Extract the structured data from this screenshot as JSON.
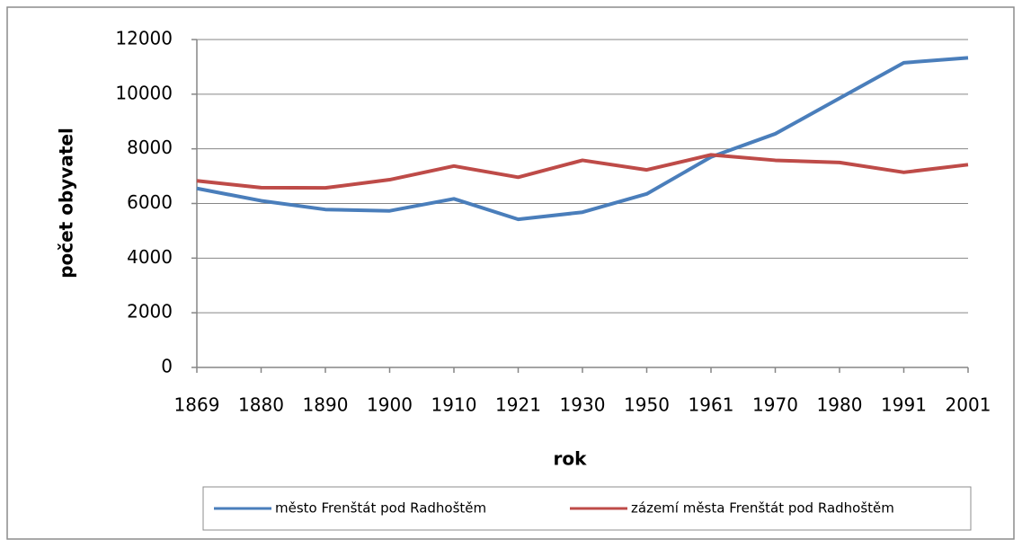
{
  "chart_data": {
    "type": "line",
    "x_label": "rok",
    "y_label": "počet obyvatel",
    "categories": [
      "1869",
      "1880",
      "1890",
      "1900",
      "1910",
      "1921",
      "1930",
      "1950",
      "1961",
      "1970",
      "1980",
      "1991",
      "2001"
    ],
    "series": [
      {
        "name": "město Frenštát pod Radhoštěm",
        "color": "#4a7ebb",
        "values": [
          6550,
          6100,
          5780,
          5730,
          6170,
          5420,
          5680,
          6350,
          7700,
          8550,
          9850,
          11150,
          11330
        ]
      },
      {
        "name": "zázemí města Frenštát pod Radhoštěm",
        "color": "#be4b48",
        "values": [
          6830,
          6580,
          6570,
          6870,
          7370,
          6960,
          7580,
          7230,
          7780,
          7580,
          7500,
          7140,
          7420
        ]
      }
    ],
    "ylim": [
      0,
      12000
    ],
    "yticks": [
      0,
      2000,
      4000,
      6000,
      8000,
      10000,
      12000
    ],
    "grid": true,
    "legend": "bottom"
  }
}
